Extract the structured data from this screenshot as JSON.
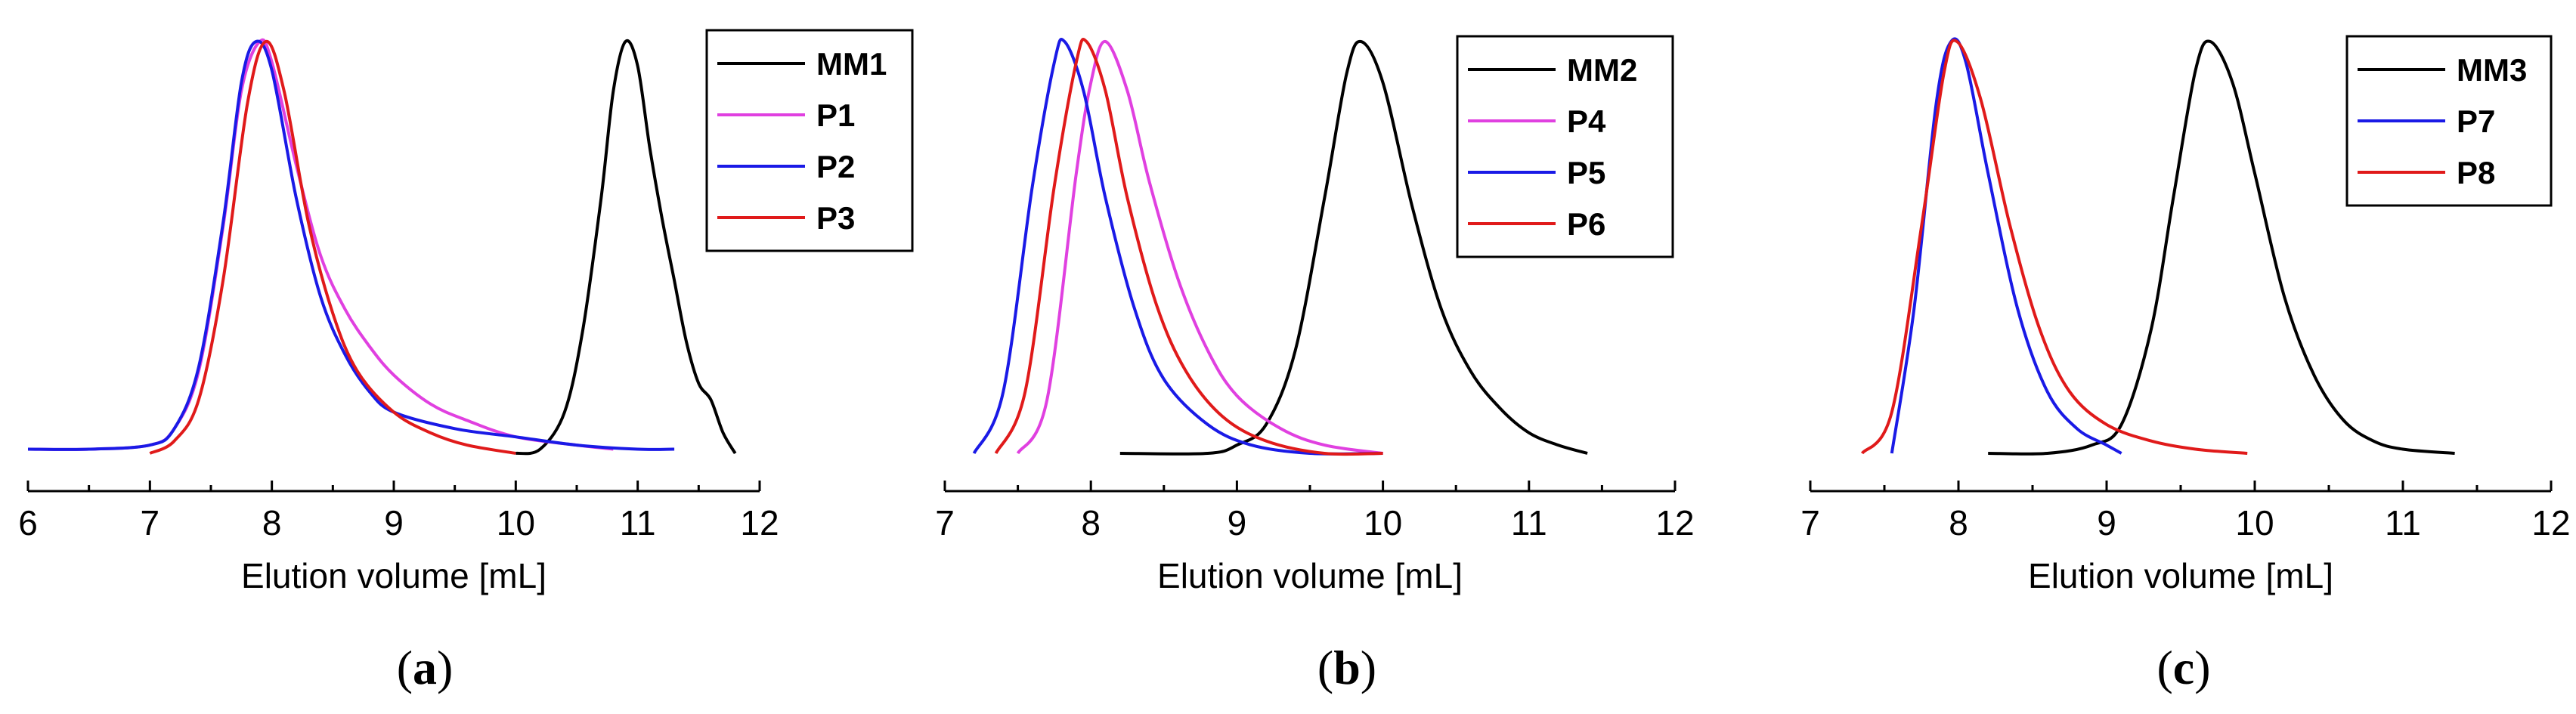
{
  "chart_data": [
    {
      "type": "line",
      "panel_label": "a",
      "xlabel": "Elution volume [mL]",
      "ylabel": "",
      "xlim": [
        6,
        12
      ],
      "ticks": [
        6,
        7,
        8,
        9,
        10,
        11,
        12
      ],
      "tick_labels": [
        "6",
        "7",
        "8",
        "9",
        "10",
        "11",
        "12"
      ],
      "legend_position": "top-right",
      "series": [
        {
          "name": "MM1",
          "color": "#000000",
          "x": [
            10.0,
            10.2,
            10.4,
            10.55,
            10.7,
            10.8,
            10.9,
            11.0,
            11.1,
            11.2,
            11.3,
            11.4,
            11.5,
            11.6,
            11.7,
            11.8
          ],
          "y": [
            0.0,
            0.01,
            0.1,
            0.3,
            0.62,
            0.88,
            1.0,
            0.94,
            0.74,
            0.57,
            0.42,
            0.27,
            0.17,
            0.13,
            0.05,
            0.0
          ]
        },
        {
          "name": "P1",
          "color": "#e040e0",
          "x": [
            6.0,
            6.5,
            7.0,
            7.2,
            7.4,
            7.6,
            7.75,
            7.9,
            8.0,
            8.2,
            8.4,
            8.6,
            8.8,
            9.0,
            9.3,
            9.6,
            10.0,
            10.5,
            10.8
          ],
          "y": [
            0.01,
            0.01,
            0.02,
            0.06,
            0.2,
            0.55,
            0.88,
            1.0,
            0.95,
            0.7,
            0.48,
            0.35,
            0.26,
            0.19,
            0.12,
            0.08,
            0.04,
            0.02,
            0.01
          ]
        },
        {
          "name": "P2",
          "color": "#1a1ae6",
          "x": [
            6.0,
            6.5,
            7.0,
            7.2,
            7.4,
            7.6,
            7.75,
            7.87,
            8.0,
            8.2,
            8.4,
            8.6,
            8.8,
            9.0,
            9.5,
            10.0,
            10.5,
            11.0,
            11.3
          ],
          "y": [
            0.01,
            0.01,
            0.02,
            0.06,
            0.21,
            0.56,
            0.9,
            1.0,
            0.93,
            0.62,
            0.38,
            0.24,
            0.15,
            0.1,
            0.06,
            0.04,
            0.02,
            0.01,
            0.01
          ]
        },
        {
          "name": "P3",
          "color": "#e01a1a",
          "x": [
            7.0,
            7.2,
            7.4,
            7.6,
            7.8,
            7.95,
            8.1,
            8.3,
            8.5,
            8.7,
            9.0,
            9.3,
            9.6,
            10.0
          ],
          "y": [
            0.0,
            0.03,
            0.13,
            0.42,
            0.85,
            1.0,
            0.88,
            0.56,
            0.34,
            0.2,
            0.1,
            0.05,
            0.02,
            0.0
          ]
        }
      ]
    },
    {
      "type": "line",
      "panel_label": "b",
      "xlabel": "Elution volume [mL]",
      "ylabel": "",
      "xlim": [
        7,
        12
      ],
      "ticks": [
        7,
        8,
        9,
        10,
        11,
        12
      ],
      "tick_labels": [
        "7",
        "8",
        "9",
        "10",
        "11",
        "12"
      ],
      "legend_position": "top-right",
      "series": [
        {
          "name": "MM2",
          "color": "#000000",
          "x": [
            8.2,
            8.8,
            9.0,
            9.2,
            9.4,
            9.6,
            9.75,
            9.85,
            10.0,
            10.2,
            10.4,
            10.6,
            10.8,
            11.0,
            11.2,
            11.4
          ],
          "y": [
            0.0,
            0.0,
            0.02,
            0.07,
            0.25,
            0.62,
            0.92,
            1.0,
            0.9,
            0.6,
            0.35,
            0.2,
            0.11,
            0.05,
            0.02,
            0.0
          ]
        },
        {
          "name": "P4",
          "color": "#e040e0",
          "x": [
            7.5,
            7.7,
            7.9,
            8.0,
            8.1,
            8.25,
            8.4,
            8.6,
            8.8,
            9.0,
            9.3,
            9.6,
            10.0
          ],
          "y": [
            0.0,
            0.13,
            0.68,
            0.9,
            1.0,
            0.88,
            0.66,
            0.42,
            0.25,
            0.14,
            0.06,
            0.02,
            0.0
          ]
        },
        {
          "name": "P5",
          "color": "#1a1ae6",
          "x": [
            7.2,
            7.4,
            7.6,
            7.75,
            7.82,
            7.95,
            8.1,
            8.3,
            8.5,
            8.8,
            9.1,
            9.5,
            10.0
          ],
          "y": [
            0.0,
            0.15,
            0.65,
            0.95,
            1.0,
            0.88,
            0.62,
            0.35,
            0.18,
            0.07,
            0.02,
            0.0,
            0.0
          ]
        },
        {
          "name": "P6",
          "color": "#e01a1a",
          "x": [
            7.35,
            7.55,
            7.75,
            7.9,
            7.97,
            8.1,
            8.25,
            8.45,
            8.65,
            8.9,
            9.2,
            9.6,
            10.0
          ],
          "y": [
            0.0,
            0.15,
            0.65,
            0.95,
            1.0,
            0.88,
            0.62,
            0.36,
            0.2,
            0.09,
            0.03,
            0.0,
            0.0
          ]
        }
      ]
    },
    {
      "type": "line",
      "panel_label": "c",
      "xlabel": "Elution volume [mL]",
      "ylabel": "",
      "xlim": [
        7,
        12
      ],
      "ticks": [
        7,
        8,
        9,
        10,
        11,
        12
      ],
      "tick_labels": [
        "7",
        "8",
        "9",
        "10",
        "11",
        "12"
      ],
      "legend_position": "top-right",
      "series": [
        {
          "name": "MM3",
          "color": "#000000",
          "x": [
            8.2,
            8.6,
            8.9,
            9.1,
            9.3,
            9.45,
            9.6,
            9.7,
            9.85,
            10.0,
            10.2,
            10.4,
            10.6,
            10.8,
            11.0,
            11.35
          ],
          "y": [
            0.0,
            0.0,
            0.02,
            0.07,
            0.3,
            0.62,
            0.93,
            1.0,
            0.9,
            0.68,
            0.38,
            0.19,
            0.08,
            0.03,
            0.01,
            0.0
          ]
        },
        {
          "name": "P7",
          "color": "#1a1ae6",
          "x": [
            7.55,
            7.7,
            7.85,
            7.95,
            8.05,
            8.2,
            8.4,
            8.6,
            8.8,
            9.0,
            9.1
          ],
          "y": [
            0.0,
            0.35,
            0.85,
            1.0,
            0.95,
            0.68,
            0.35,
            0.15,
            0.06,
            0.02,
            0.0
          ]
        },
        {
          "name": "P8",
          "color": "#e01a1a",
          "x": [
            7.35,
            7.55,
            7.75,
            7.9,
            7.99,
            8.15,
            8.35,
            8.55,
            8.75,
            9.0,
            9.3,
            9.6,
            9.95
          ],
          "y": [
            0.0,
            0.1,
            0.55,
            0.92,
            1.0,
            0.86,
            0.55,
            0.3,
            0.15,
            0.07,
            0.03,
            0.01,
            0.0
          ]
        }
      ]
    }
  ]
}
